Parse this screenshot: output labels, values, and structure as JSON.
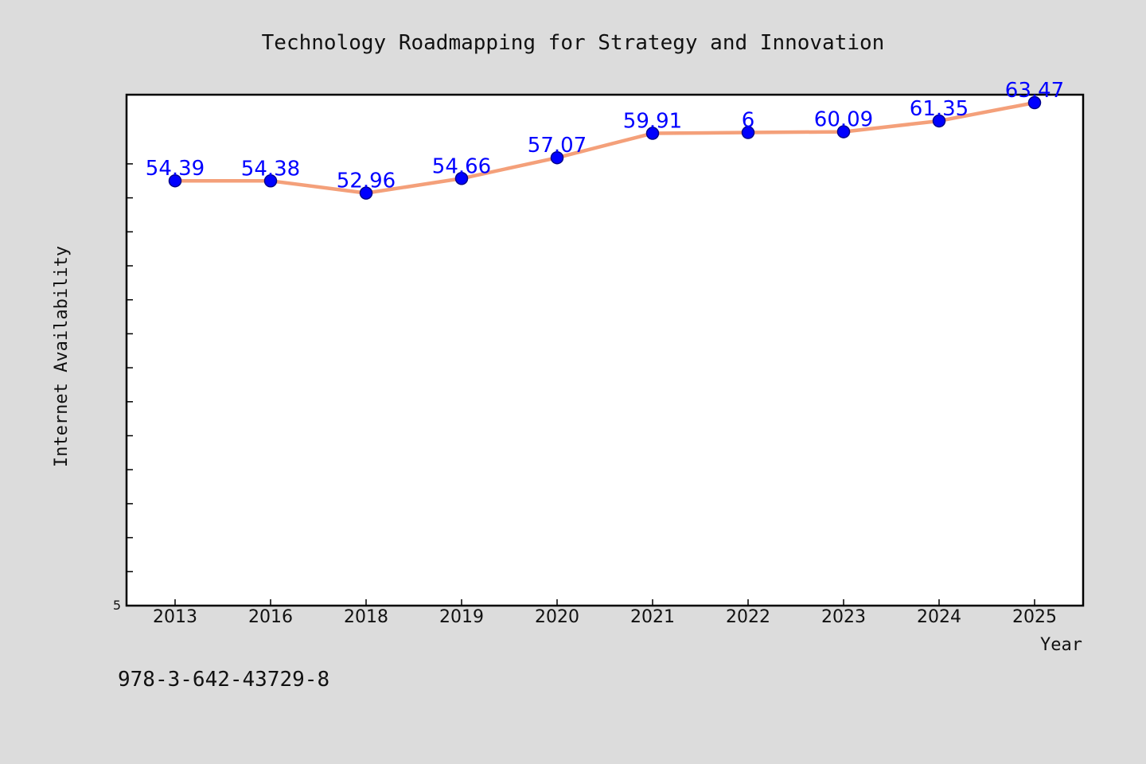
{
  "chart_data": {
    "type": "line",
    "title": "Technology Roadmapping for Strategy and Innovation",
    "xlabel": "Year",
    "ylabel": "Internet Availability",
    "categories": [
      "2013",
      "2016",
      "2018",
      "2019",
      "2020",
      "2021",
      "2022",
      "2023",
      "2024",
      "2025"
    ],
    "series": [
      {
        "values": [
          54.39,
          54.38,
          52.96,
          54.66,
          57.07,
          59.91,
          6,
          60.09,
          61.35,
          63.47
        ],
        "labels": [
          "54.39",
          "54.38",
          "52.96",
          "54.66",
          "57.07",
          "59.91",
          "6",
          "60.09",
          "61.35",
          "63.47"
        ],
        "line_color": "#f4a07a",
        "marker_color": "#0000ff"
      }
    ],
    "ylim": [
      5,
      64.4
    ],
    "ytick_labels": [
      "5"
    ],
    "grid": false,
    "legend": "none"
  },
  "footer": {
    "isbn": "978-3-642-43729-8"
  },
  "colors": {
    "background": "#dcdcdc",
    "plot_background": "#ffffff",
    "line": "#f4a07a",
    "marker": "#0000ff",
    "data_label": "#0000ff"
  }
}
